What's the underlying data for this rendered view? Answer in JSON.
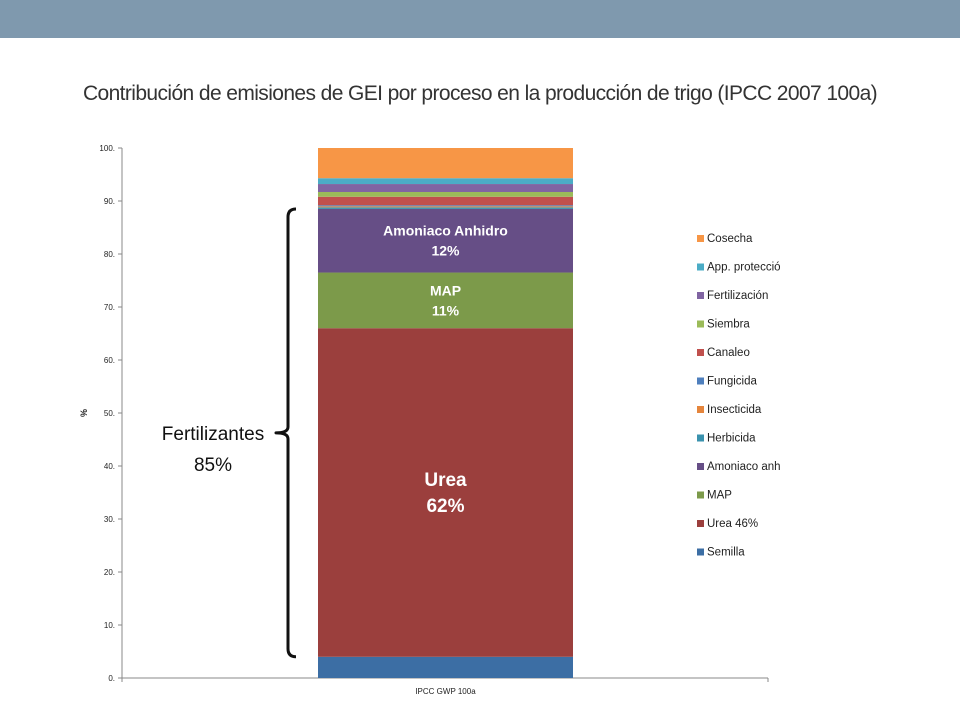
{
  "header": {
    "band_color": "#7f99ae"
  },
  "slide_title": "Contribución de emisiones de GEI por proceso en la producción de trigo (IPCC 2007 100a)",
  "chart_data": {
    "type": "bar",
    "stacked": true,
    "title": "",
    "xlabel": "",
    "ylabel": "%",
    "ylim": [
      0,
      100
    ],
    "yticks": [
      0,
      10,
      20,
      30,
      40,
      50,
      60,
      70,
      80,
      90,
      100
    ],
    "ytick_labels": [
      "0.",
      "10.",
      "20.",
      "30.",
      "40.",
      "50.",
      "60.",
      "70.",
      "80.",
      "90.",
      "100."
    ],
    "categories": [
      "IPCC GWP 100a"
    ],
    "grid": false,
    "legend_position": "right",
    "series": [
      {
        "name": "Semilla",
        "values": [
          4.0
        ],
        "color": "#3c6ea4"
      },
      {
        "name": "Urea 46%",
        "values": [
          62.0
        ],
        "color": "#9b3f3d"
      },
      {
        "name": "MAP",
        "values": [
          10.5
        ],
        "color": "#7c9a4a"
      },
      {
        "name": "Amoniaco anhidro",
        "values": [
          12.0
        ],
        "color": "#664e86"
      },
      {
        "name": "Herbicida",
        "values": [
          0.3
        ],
        "color": "#3a92ae"
      },
      {
        "name": "Insecticida",
        "values": [
          0.2
        ],
        "color": "#e5853c"
      },
      {
        "name": "Fungicida",
        "values": [
          0.2
        ],
        "color": "#4e7fbd"
      },
      {
        "name": "Canaleo",
        "values": [
          1.6
        ],
        "color": "#c0504d"
      },
      {
        "name": "Siembra",
        "values": [
          0.9
        ],
        "color": "#9bbb59"
      },
      {
        "name": "Fertilización",
        "values": [
          1.5
        ],
        "color": "#8064a2"
      },
      {
        "name": "App. protección",
        "values": [
          1.1
        ],
        "color": "#4bacc6"
      },
      {
        "name": "Cosecha",
        "values": [
          5.7
        ],
        "color": "#f79646"
      }
    ],
    "bar_annotations": [
      {
        "series": "Amoniaco anhidro",
        "line1": "Amoniaco Anhidro",
        "line2": "12%"
      },
      {
        "series": "MAP",
        "line1": "MAP",
        "line2": "11%"
      },
      {
        "series": "Urea 46%",
        "line1": "Urea",
        "line2": "62%"
      }
    ],
    "bracket_annotation": {
      "line1": "Fertilizantes",
      "line2": "85%",
      "from": 4.0,
      "to": 88.5
    }
  }
}
